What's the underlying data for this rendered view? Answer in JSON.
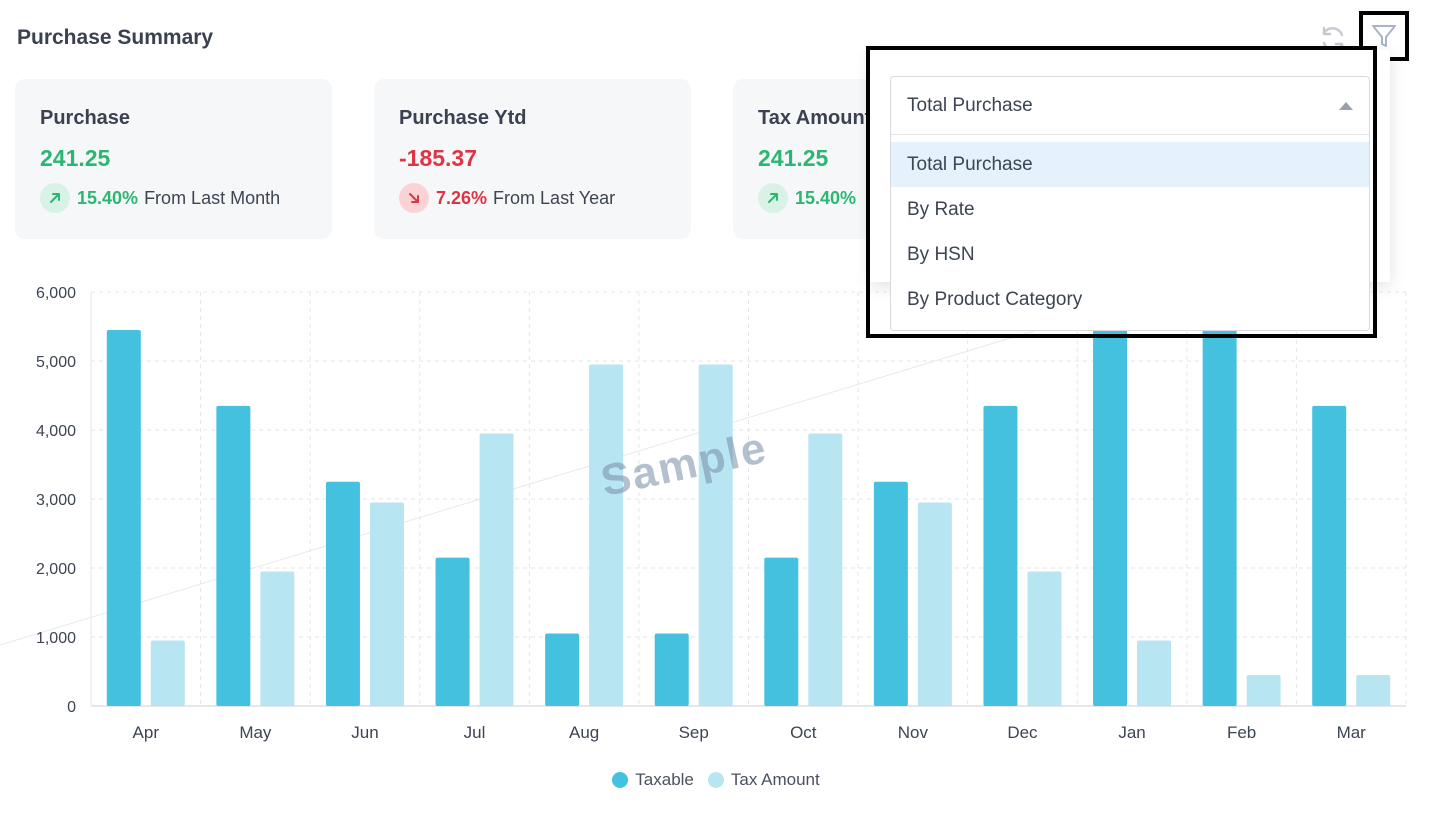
{
  "header": {
    "title": "Purchase Summary",
    "refresh_icon": "refresh-icon",
    "filter_icon": "filter-icon"
  },
  "cards": [
    {
      "label": "Purchase",
      "value": "241.25",
      "value_color": "#2bb673",
      "trend_dir": "up",
      "percent": "15.40%",
      "ref": "From Last Month"
    },
    {
      "label": "Purchase Ytd",
      "value": "-185.37",
      "value_color": "#de3545",
      "trend_dir": "down",
      "percent": "7.26%",
      "ref": "From Last Year"
    },
    {
      "label": "Tax Amount",
      "value": "241.25",
      "value_color": "#2bb673",
      "trend_dir": "up",
      "percent": "15.40%",
      "ref": ""
    }
  ],
  "dropdown": {
    "value": "Total Purchase",
    "options": [
      "Total Purchase",
      "By Rate",
      "By HSN",
      "By Product Category"
    ],
    "selected_index": 0
  },
  "watermark": "Sample",
  "colors": {
    "taxable": "#45c1e0",
    "tax_amount": "#b7e6f2",
    "grid": "#e3e6ea",
    "axis_text": "#3d4452"
  },
  "chart_data": {
    "type": "bar",
    "categories": [
      "Apr",
      "May",
      "Jun",
      "Jul",
      "Aug",
      "Sep",
      "Oct",
      "Nov",
      "Dec",
      "Jan",
      "Feb",
      "Mar"
    ],
    "series": [
      {
        "name": "Taxable",
        "values": [
          5450,
          4350,
          3250,
          2150,
          1050,
          1050,
          2150,
          3250,
          4350,
          5450,
          5450,
          4350
        ]
      },
      {
        "name": "Tax Amount",
        "values": [
          950,
          1950,
          2950,
          3950,
          4950,
          4950,
          3950,
          2950,
          1950,
          950,
          450,
          450
        ]
      }
    ],
    "yticks": [
      "0",
      "1,000",
      "2,000",
      "3,000",
      "4,000",
      "5,000",
      "6,000"
    ],
    "ylim": [
      0,
      6000
    ],
    "grid": true,
    "legend": "bottom-center"
  }
}
